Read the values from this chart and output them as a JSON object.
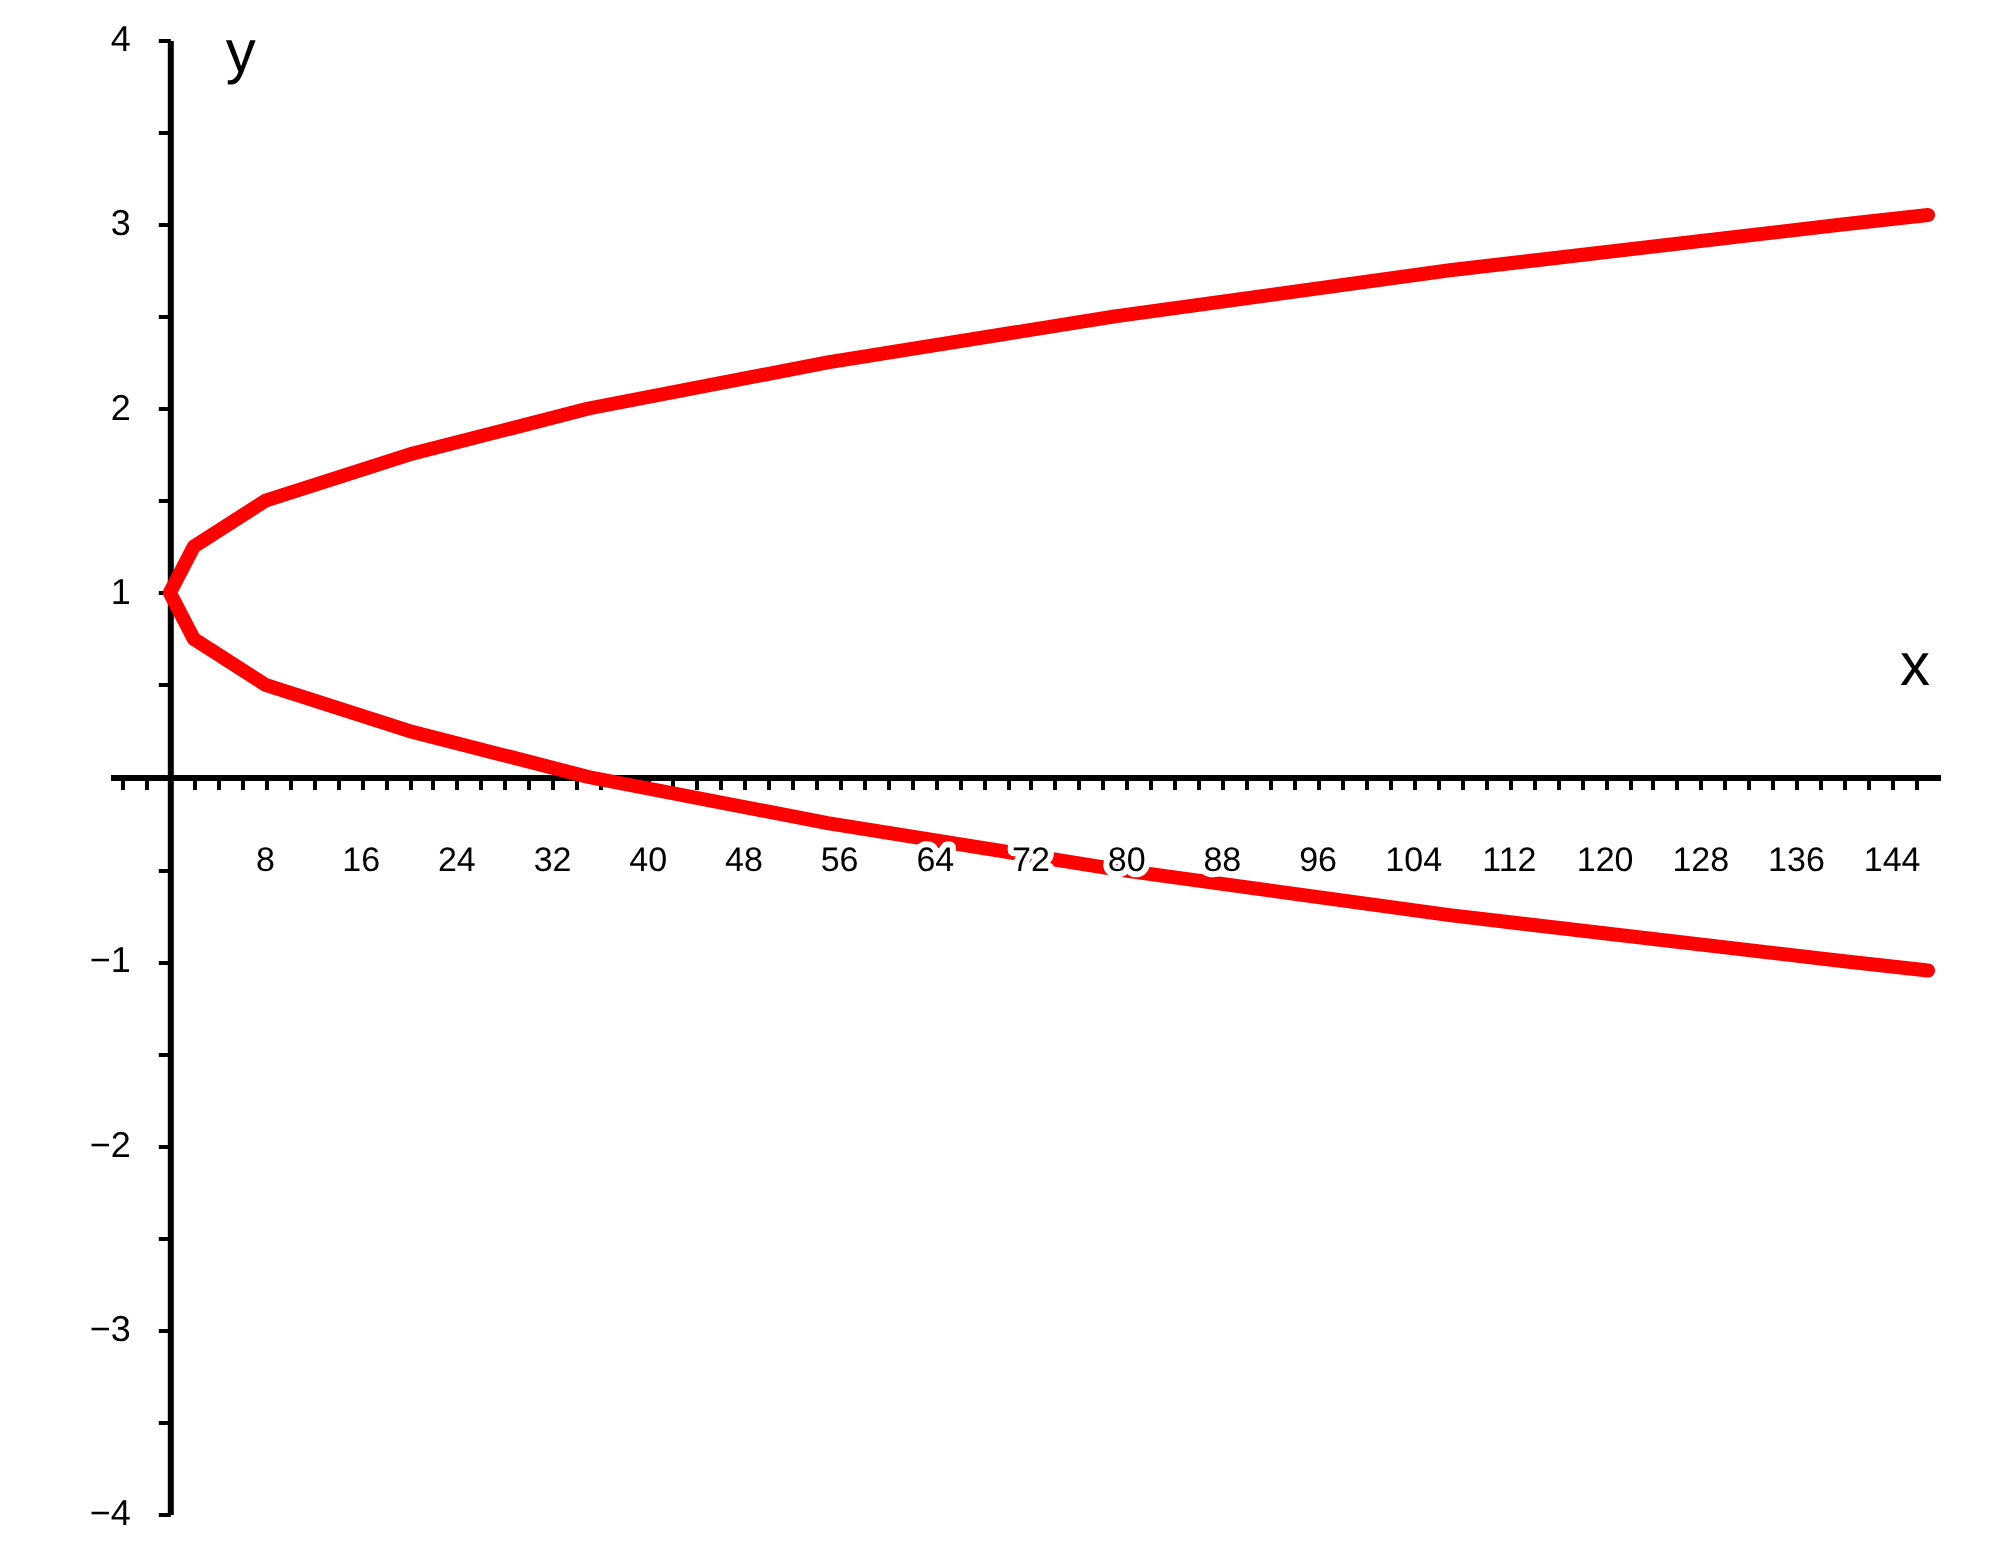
{
  "chart_data": {
    "type": "line",
    "xlabel": "x",
    "ylabel": "y",
    "xlim": [
      -5,
      148
    ],
    "ylim": [
      -4,
      4
    ],
    "xticks": [
      {
        "value": -4,
        "label": null
      },
      {
        "value": -2,
        "label": null
      },
      {
        "value": 2,
        "label": null
      },
      {
        "value": 4,
        "label": null
      },
      {
        "value": 6,
        "label": null
      },
      8,
      {
        "value": 10,
        "label": null
      },
      {
        "value": 12,
        "label": null
      },
      {
        "value": 14,
        "label": null
      },
      16,
      {
        "value": 18,
        "label": null
      },
      {
        "value": 20,
        "label": null
      },
      {
        "value": 22,
        "label": null
      },
      24,
      {
        "value": 26,
        "label": null
      },
      {
        "value": 28,
        "label": null
      },
      {
        "value": 30,
        "label": null
      },
      32,
      {
        "value": 34,
        "label": null
      },
      {
        "value": 36,
        "label": null
      },
      {
        "value": 38,
        "label": null
      },
      40,
      {
        "value": 42,
        "label": null
      },
      {
        "value": 44,
        "label": null
      },
      {
        "value": 46,
        "label": null
      },
      48,
      {
        "value": 50,
        "label": null
      },
      {
        "value": 52,
        "label": null
      },
      {
        "value": 54,
        "label": null
      },
      56,
      {
        "value": 58,
        "label": null
      },
      {
        "value": 60,
        "label": null
      },
      {
        "value": 62,
        "label": null
      },
      64,
      {
        "value": 66,
        "label": null
      },
      {
        "value": 68,
        "label": null
      },
      {
        "value": 70,
        "label": null
      },
      72,
      {
        "value": 74,
        "label": null
      },
      {
        "value": 76,
        "label": null
      },
      {
        "value": 78,
        "label": null
      },
      80,
      {
        "value": 82,
        "label": null
      },
      {
        "value": 84,
        "label": null
      },
      {
        "value": 86,
        "label": null
      },
      88,
      {
        "value": 90,
        "label": null
      },
      {
        "value": 92,
        "label": null
      },
      {
        "value": 94,
        "label": null
      },
      96,
      {
        "value": 98,
        "label": null
      },
      {
        "value": 100,
        "label": null
      },
      {
        "value": 102,
        "label": null
      },
      104,
      {
        "value": 106,
        "label": null
      },
      {
        "value": 108,
        "label": null
      },
      {
        "value": 110,
        "label": null
      },
      112,
      {
        "value": 114,
        "label": null
      },
      {
        "value": 116,
        "label": null
      },
      {
        "value": 118,
        "label": null
      },
      120,
      {
        "value": 122,
        "label": null
      },
      {
        "value": 124,
        "label": null
      },
      {
        "value": 126,
        "label": null
      },
      128,
      {
        "value": 130,
        "label": null
      },
      {
        "value": 132,
        "label": null
      },
      {
        "value": 134,
        "label": null
      },
      136,
      {
        "value": 138,
        "label": null
      },
      {
        "value": 140,
        "label": null
      },
      {
        "value": 142,
        "label": null
      },
      144,
      {
        "value": 146,
        "label": null
      }
    ],
    "yticks": [
      {
        "value": -4,
        "label": "−4"
      },
      {
        "value": -3.5,
        "label": null
      },
      {
        "value": -3,
        "label": "−3"
      },
      {
        "value": -2.5,
        "label": null
      },
      {
        "value": -2,
        "label": "−2"
      },
      {
        "value": -1.5,
        "label": null
      },
      {
        "value": -1,
        "label": "−1"
      },
      {
        "value": -0.5,
        "label": null
      },
      {
        "value": 0.5,
        "label": null
      },
      1,
      {
        "value": 1.5,
        "label": null
      },
      2,
      {
        "value": 2.5,
        "label": null
      },
      3,
      {
        "value": 3.5,
        "label": null
      },
      4
    ],
    "grid": false,
    "marker": "none",
    "line_style": "solid",
    "series": [
      {
        "color": "#ff0000",
        "x": [
          147,
          140,
          107,
          79,
          55,
          35,
          20,
          8,
          2,
          0,
          2,
          8,
          20,
          35,
          55,
          79,
          107,
          140,
          147
        ],
        "values": [
          3.05,
          3.0,
          2.75,
          2.5,
          2.25,
          2.0,
          1.75,
          1.5,
          1.25,
          1.0,
          0.75,
          0.5,
          0.25,
          0.0,
          -0.25,
          -0.5,
          -0.75,
          -1.0,
          -1.05
        ]
      }
    ]
  }
}
